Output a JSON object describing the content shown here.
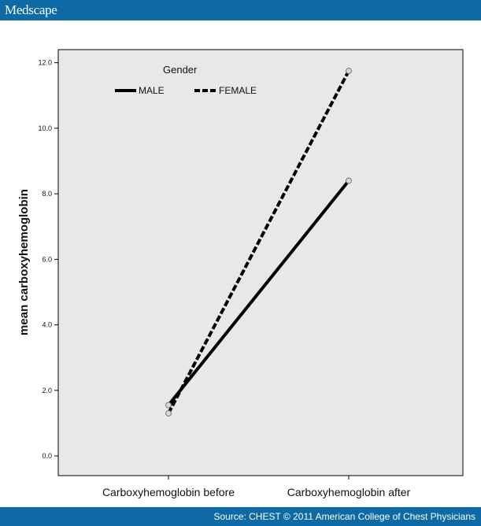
{
  "header": {
    "brand": "Medscape"
  },
  "footer": {
    "source": "Source: CHEST © 2011 American College of Chest Physicians"
  },
  "colors": {
    "bar": "#0d6aa5",
    "plot_bg": "#e8e8e8",
    "line": "#000000"
  },
  "chart_data": {
    "type": "line",
    "categories": [
      "Carboxyhemoglobin before",
      "Carboxyhemoglobin after"
    ],
    "ylabel": "mean carboxyhemoglobin",
    "xlabel": "",
    "ylim": [
      -0.6,
      12.4
    ],
    "yticks": [
      0.0,
      2.0,
      4.0,
      6.0,
      8.0,
      10.0,
      12.0
    ],
    "ytick_labels": [
      "0.0",
      "2.0",
      "4.0",
      "6.0",
      "8.0",
      "10.0",
      "12.0"
    ],
    "grid": false,
    "legend": {
      "title": "Gender",
      "position": "top-left"
    },
    "series": [
      {
        "name": "MALE",
        "values": [
          1.55,
          8.4
        ],
        "style": "solid"
      },
      {
        "name": "FEMALE",
        "values": [
          1.3,
          11.75
        ],
        "style": "dashed"
      }
    ]
  }
}
